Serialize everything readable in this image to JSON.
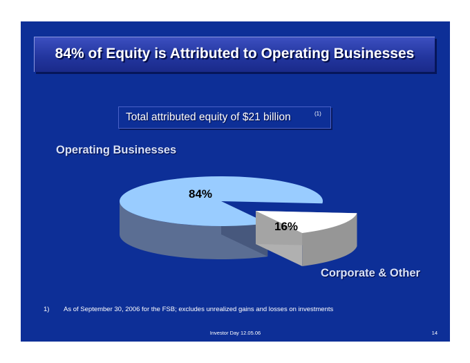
{
  "slide": {
    "title": "84% of Equity is Attributed to Operating Businesses",
    "subtitle": "Total attributed equity of $21 billion",
    "subtitle_footnote_ref": "(1)",
    "footnote_number": "1)",
    "footnote_text": "As of September 30, 2006 for the FSB; excludes unrealized gains and losses on investments",
    "footer_text": "Investor Day 12.05.06",
    "page_number": "14"
  },
  "colors": {
    "background": "#0d2f97",
    "operating_top": "#99ccff",
    "operating_side": "#5b6e93",
    "corporate_top": "#ffffff",
    "corporate_side": "#969696"
  },
  "chart_data": {
    "type": "pie",
    "title": "",
    "slices": [
      {
        "name": "Operating Businesses",
        "value": 84,
        "label": "84%"
      },
      {
        "name": "Corporate & Other",
        "value": 16,
        "label": "16%"
      }
    ],
    "exploded": "Corporate & Other",
    "three_d": true
  }
}
